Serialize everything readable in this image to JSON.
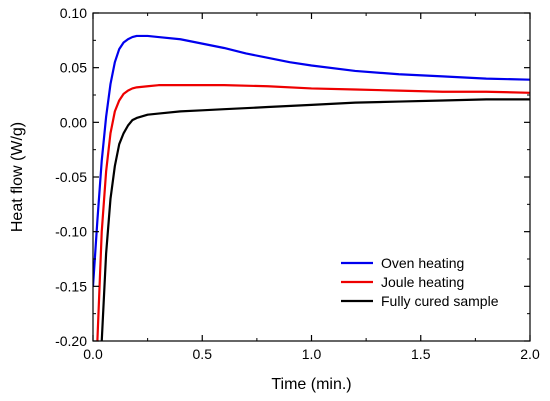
{
  "chart_data": {
    "type": "line",
    "title": "",
    "xlabel": "Time (min.)",
    "ylabel": "Heat flow (W/g)",
    "xlim": [
      0.0,
      2.0
    ],
    "ylim": [
      -0.2,
      0.1
    ],
    "xticks": [
      0.0,
      0.5,
      1.0,
      1.5,
      2.0
    ],
    "xtick_labels": [
      "0.0",
      "0.5",
      "1.0",
      "1.5",
      "2.0"
    ],
    "yticks": [
      -0.2,
      -0.15,
      -0.1,
      -0.05,
      0.0,
      0.05,
      0.1
    ],
    "ytick_labels": [
      "-0.20",
      "-0.15",
      "-0.10",
      "-0.05",
      "0.00",
      "0.05",
      "0.10"
    ],
    "grid": false,
    "legend_position": "bottom-right",
    "series": [
      {
        "name": "Oven heating",
        "color": "#0000ee",
        "x": [
          0.0,
          0.02,
          0.04,
          0.06,
          0.08,
          0.1,
          0.12,
          0.14,
          0.16,
          0.18,
          0.2,
          0.25,
          0.3,
          0.4,
          0.5,
          0.6,
          0.7,
          0.8,
          0.9,
          1.0,
          1.2,
          1.4,
          1.6,
          1.8,
          2.0
        ],
        "y": [
          -0.15,
          -0.09,
          -0.035,
          0.005,
          0.035,
          0.055,
          0.067,
          0.073,
          0.076,
          0.078,
          0.079,
          0.079,
          0.078,
          0.076,
          0.072,
          0.068,
          0.063,
          0.059,
          0.055,
          0.052,
          0.047,
          0.044,
          0.042,
          0.04,
          0.039
        ]
      },
      {
        "name": "Joule heating",
        "color": "#ee0000",
        "x": [
          0.02,
          0.04,
          0.06,
          0.08,
          0.1,
          0.12,
          0.14,
          0.16,
          0.18,
          0.2,
          0.25,
          0.3,
          0.4,
          0.5,
          0.6,
          0.8,
          1.0,
          1.2,
          1.4,
          1.6,
          1.8,
          2.0
        ],
        "y": [
          -0.2,
          -0.1,
          -0.045,
          -0.01,
          0.01,
          0.02,
          0.026,
          0.029,
          0.031,
          0.032,
          0.033,
          0.034,
          0.034,
          0.034,
          0.034,
          0.033,
          0.031,
          0.03,
          0.029,
          0.028,
          0.028,
          0.027
        ]
      },
      {
        "name": "Fully cured sample",
        "color": "#000000",
        "x": [
          0.04,
          0.06,
          0.08,
          0.1,
          0.12,
          0.14,
          0.16,
          0.18,
          0.2,
          0.25,
          0.3,
          0.4,
          0.5,
          0.6,
          0.8,
          1.0,
          1.2,
          1.4,
          1.6,
          1.8,
          2.0
        ],
        "y": [
          -0.2,
          -0.12,
          -0.07,
          -0.04,
          -0.02,
          -0.01,
          -0.003,
          0.002,
          0.004,
          0.007,
          0.008,
          0.01,
          0.011,
          0.012,
          0.014,
          0.016,
          0.018,
          0.019,
          0.02,
          0.021,
          0.021
        ]
      }
    ]
  }
}
